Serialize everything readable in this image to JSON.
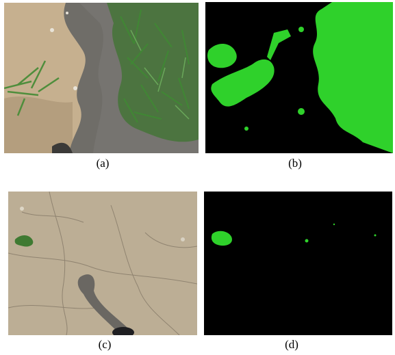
{
  "panels": [
    {
      "id": "a",
      "label": "(a)",
      "kind": "photo-grass-soil"
    },
    {
      "id": "b",
      "label": "(b)",
      "kind": "segmentation-mask"
    },
    {
      "id": "c",
      "label": "(c)",
      "kind": "photo-dry-soil"
    },
    {
      "id": "d",
      "label": "(d)",
      "kind": "segmentation-mask"
    }
  ],
  "colors": {
    "soil": "#c4ad8c",
    "wet_soil": "#6e6c66",
    "grass": "#3f7a32",
    "mask_bg": "#000000",
    "mask_fg": "#2fd12b",
    "cracked_soil": "#b9ab93"
  }
}
